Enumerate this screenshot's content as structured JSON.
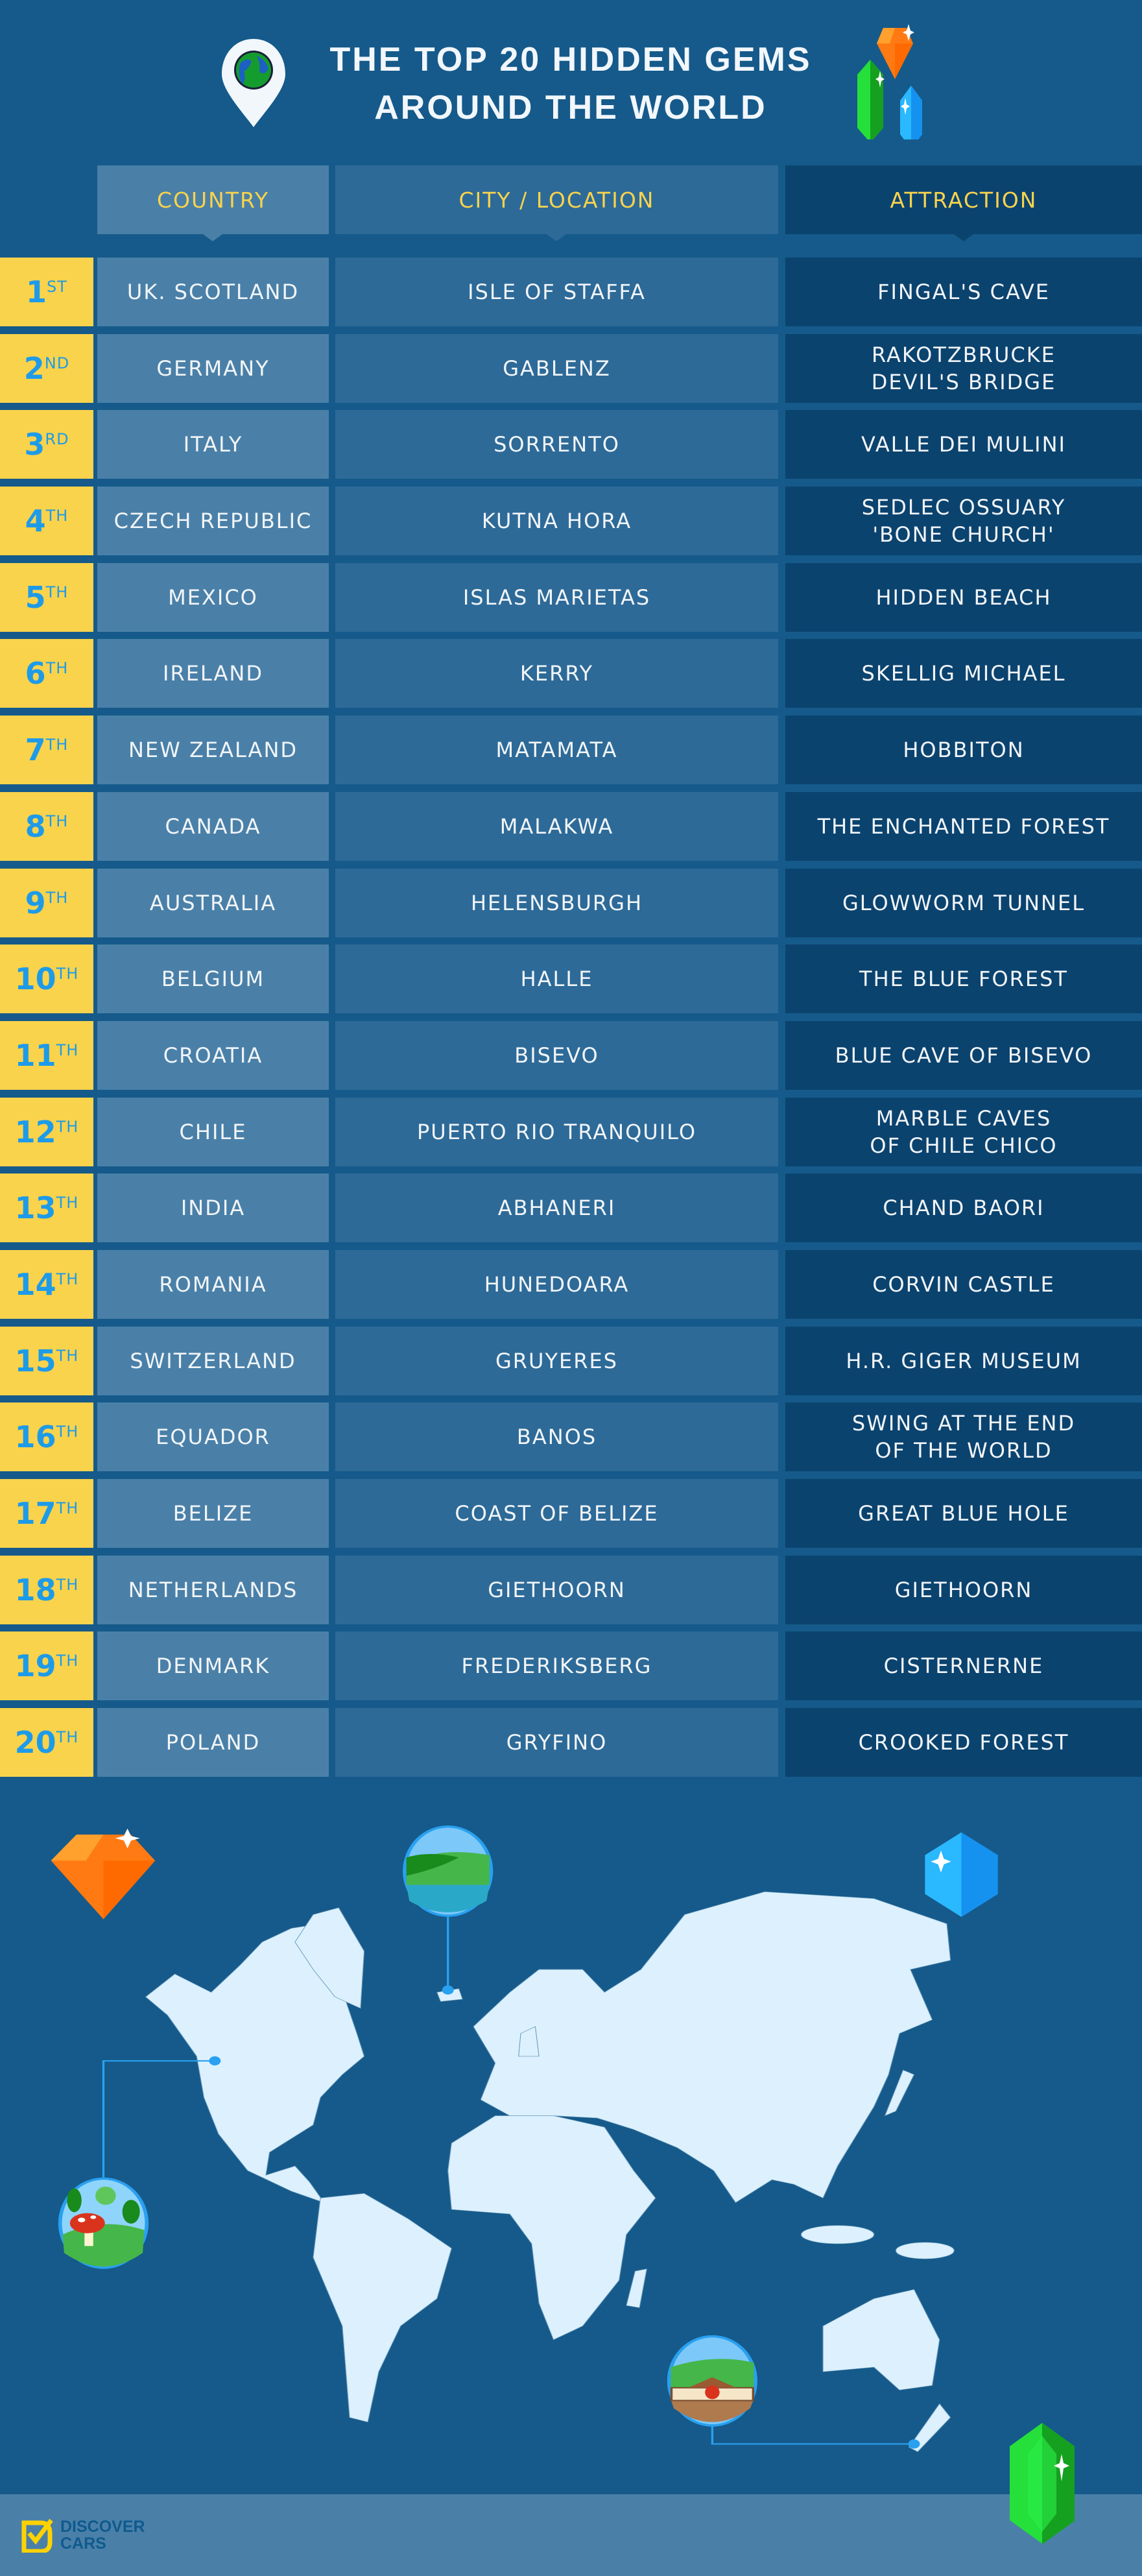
{
  "title": {
    "line1": "THE TOP 20 HIDDEN GEMS",
    "line2": "AROUND THE WORLD"
  },
  "columns": {
    "country": "COUNTRY",
    "city": "CITY / LOCATION",
    "attraction": "ATTRACTION"
  },
  "colors": {
    "background": "#155a8a",
    "rank": "#f9d34c",
    "rank_text": "#1e9be8",
    "country": "#4a80a8",
    "city": "#2d6a98",
    "attraction": "#0b436f",
    "land": "#dcf1fd"
  },
  "rows": [
    {
      "num": "1",
      "suffix": "ST",
      "country": "UK. SCOTLAND",
      "city": "ISLE OF STAFFA",
      "attraction": "FINGAL'S CAVE"
    },
    {
      "num": "2",
      "suffix": "ND",
      "country": "GERMANY",
      "city": "GABLENZ",
      "attraction": "RAKOTZBRUCKE\nDEVIL'S BRIDGE"
    },
    {
      "num": "3",
      "suffix": "RD",
      "country": "ITALY",
      "city": "SORRENTO",
      "attraction": "VALLE DEI MULINI"
    },
    {
      "num": "4",
      "suffix": "TH",
      "country": "CZECH REPUBLIC",
      "city": "KUTNA HORA",
      "attraction": "SEDLEC OSSUARY\n'BONE CHURCH'"
    },
    {
      "num": "5",
      "suffix": "TH",
      "country": "MEXICO",
      "city": "ISLAS MARIETAS",
      "attraction": "HIDDEN BEACH"
    },
    {
      "num": "6",
      "suffix": "TH",
      "country": "IRELAND",
      "city": "KERRY",
      "attraction": "SKELLIG MICHAEL"
    },
    {
      "num": "7",
      "suffix": "TH",
      "country": "NEW ZEALAND",
      "city": "MATAMATA",
      "attraction": "HOBBITON"
    },
    {
      "num": "8",
      "suffix": "TH",
      "country": "CANADA",
      "city": "MALAKWA",
      "attraction": "THE ENCHANTED FOREST"
    },
    {
      "num": "9",
      "suffix": "TH",
      "country": "AUSTRALIA",
      "city": "HELENSBURGH",
      "attraction": "GLOWWORM TUNNEL"
    },
    {
      "num": "10",
      "suffix": "TH",
      "country": "BELGIUM",
      "city": "HALLE",
      "attraction": "THE BLUE FOREST"
    },
    {
      "num": "11",
      "suffix": "TH",
      "country": "CROATIA",
      "city": "BISEVO",
      "attraction": "BLUE CAVE OF BISEVO"
    },
    {
      "num": "12",
      "suffix": "TH",
      "country": "CHILE",
      "city": "PUERTO RIO TRANQUILO",
      "attraction": "MARBLE CAVES\nOF CHILE CHICO"
    },
    {
      "num": "13",
      "suffix": "TH",
      "country": "INDIA",
      "city": "ABHANERI",
      "attraction": "CHAND BAORI"
    },
    {
      "num": "14",
      "suffix": "TH",
      "country": "ROMANIA",
      "city": "HUNEDOARA",
      "attraction": "CORVIN CASTLE"
    },
    {
      "num": "15",
      "suffix": "TH",
      "country": "SWITZERLAND",
      "city": "GRUYERES",
      "attraction": "H.R. GIGER MUSEUM"
    },
    {
      "num": "16",
      "suffix": "TH",
      "country": "EQUADOR",
      "city": "BANOS",
      "attraction": "SWING AT THE END\nOF THE WORLD"
    },
    {
      "num": "17",
      "suffix": "TH",
      "country": "BELIZE",
      "city": "COAST OF BELIZE",
      "attraction": "GREAT BLUE HOLE"
    },
    {
      "num": "18",
      "suffix": "TH",
      "country": "NETHERLANDS",
      "city": "GIETHOORN",
      "attraction": "GIETHOORN"
    },
    {
      "num": "19",
      "suffix": "TH",
      "country": "DENMARK",
      "city": "FREDERIKSBERG",
      "attraction": "CISTERNERNE"
    },
    {
      "num": "20",
      "suffix": "TH",
      "country": "POLAND",
      "city": "GRYFINO",
      "attraction": "CROOKED FOREST"
    }
  ],
  "footer": {
    "logo_line1": "DISCOVER",
    "logo_line2": "CARS"
  }
}
